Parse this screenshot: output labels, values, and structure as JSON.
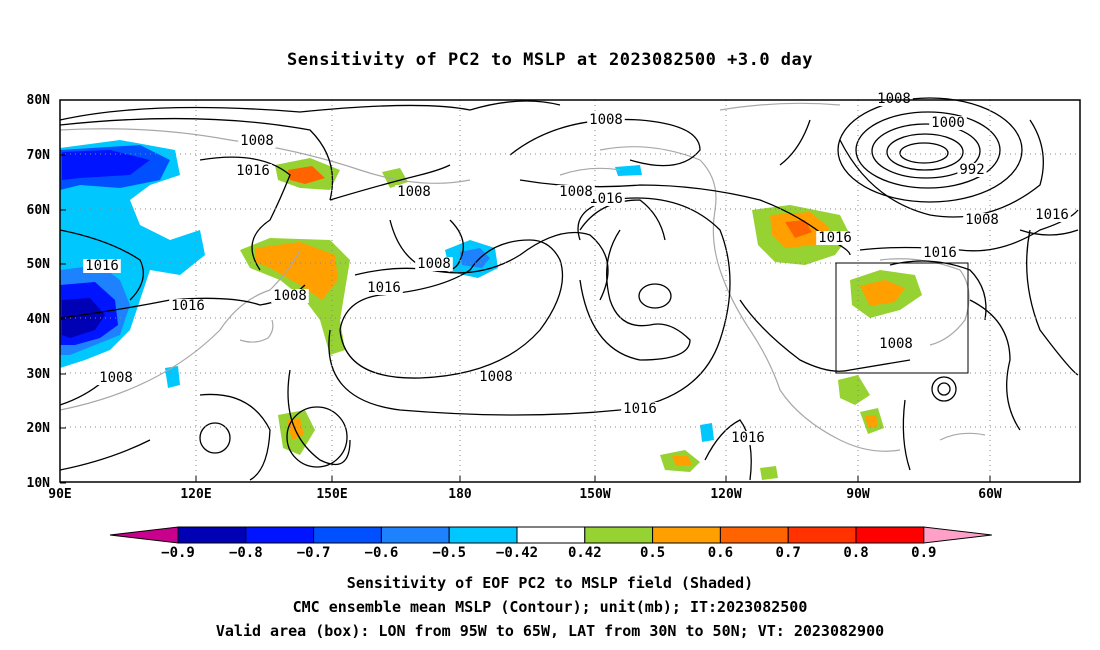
{
  "title": "Sensitivity of PC2 to MSLP at 2023082500 +3.0 day",
  "map": {
    "lat_ticks": [
      "80N",
      "70N",
      "60N",
      "50N",
      "40N",
      "30N",
      "20N",
      "10N"
    ],
    "lon_ticks": [
      "90E",
      "120E",
      "150E",
      "180",
      "150W",
      "120W",
      "90W",
      "60W"
    ],
    "extent": {
      "lon_min": "90E",
      "lon_max": "50W",
      "lat_min": "10N",
      "lat_max": "80N"
    },
    "valid_box": {
      "lon_from": "95W",
      "lon_to": "65W",
      "lat_from": "30N",
      "lat_to": "50N"
    },
    "grid": "dotted",
    "contour_labels": [
      {
        "text": "1008"
      },
      {
        "text": "1016"
      },
      {
        "text": "1008"
      },
      {
        "text": "1008"
      },
      {
        "text": "1016"
      },
      {
        "text": "1016"
      },
      {
        "text": "1008"
      },
      {
        "text": "1008"
      },
      {
        "text": "1016"
      },
      {
        "text": "1008"
      },
      {
        "text": "1016"
      },
      {
        "text": "1016"
      },
      {
        "text": "1008"
      },
      {
        "text": "1016"
      },
      {
        "text": "1008"
      },
      {
        "text": "1016"
      },
      {
        "text": "1008"
      },
      {
        "text": "1000"
      },
      {
        "text": "992"
      },
      {
        "text": "1008"
      },
      {
        "text": "1016"
      },
      {
        "text": "1016"
      },
      {
        "text": "1008"
      }
    ]
  },
  "colorbar": {
    "labels": [
      "-0.9",
      "-0.8",
      "-0.7",
      "-0.6",
      "-0.5",
      "-0.42",
      "0.42",
      "0.5",
      "0.6",
      "0.7",
      "0.8",
      "0.9"
    ],
    "colors": [
      "#c8008c",
      "#0000b4",
      "#0014ff",
      "#0050ff",
      "#1e82ff",
      "#00c8ff",
      "#ffffff",
      "#96d232",
      "#ffa000",
      "#ff6400",
      "#ff3200",
      "#ff0000",
      "#ffa0c8"
    ]
  },
  "captions": [
    "Sensitivity of EOF PC2 to MSLP field (Shaded)",
    "CMC ensemble mean MSLP (Contour); unit(mb); IT:2023082500",
    "Valid area (box): LON from 95W to 65W, LAT from 30N to 50N; VT: 2023082900"
  ]
}
